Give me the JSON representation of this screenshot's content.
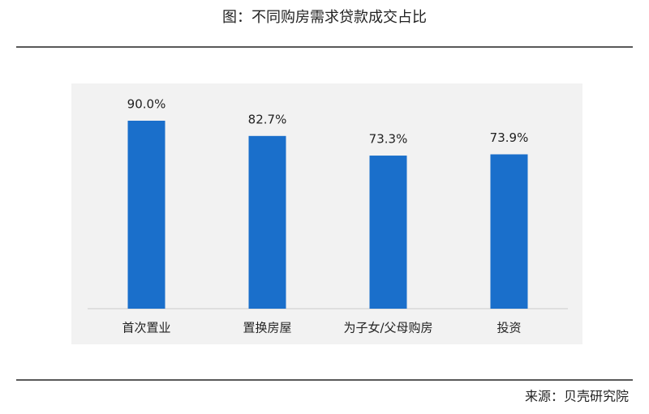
{
  "chart_data": {
    "type": "bar",
    "title": "图：不同购房需求贷款成交占比",
    "categories": [
      "首次置业",
      "置换房屋",
      "为子女/父母购房",
      "投资"
    ],
    "values": [
      90.0,
      82.7,
      73.3,
      73.9
    ],
    "value_labels": [
      "90.0%",
      "82.7%",
      "73.3%",
      "73.9%"
    ],
    "color": "#1a6fcb",
    "source": "来源：贝壳研究院"
  }
}
